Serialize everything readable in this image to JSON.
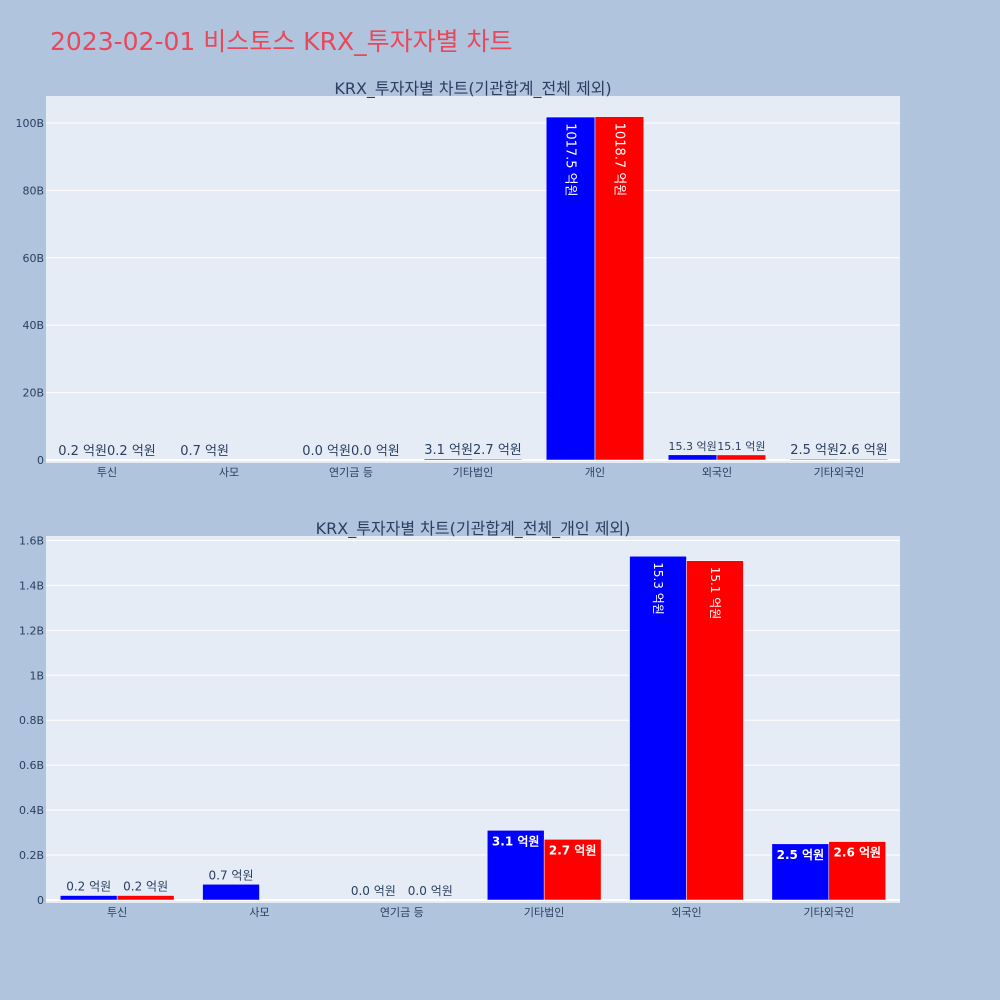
{
  "page_title": "2023-02-01 비스토스 KRX_투자자별 차트",
  "colors": {
    "background": "#b0c4de",
    "plot_bg": "#e5ecf6",
    "title": "#e8485a",
    "series_a": "#0000ff",
    "series_b": "#ff0000"
  },
  "chart_data": [
    {
      "type": "bar",
      "title": "KRX_투자자별 차트(기관합계_전체 제외)",
      "categories": [
        "투신",
        "사모",
        "연기금 등",
        "기타법인",
        "개인",
        "외국인",
        "기타외국인"
      ],
      "ylim": [
        0,
        108
      ],
      "yticks": [
        0,
        20,
        40,
        60,
        80,
        100
      ],
      "ytick_labels": [
        "0",
        "20B",
        "40B",
        "60B",
        "80B",
        "100B"
      ],
      "series": [
        {
          "color": "#0000ff",
          "values": [
            0.02,
            0.07,
            0.0,
            0.31,
            101.75,
            1.53,
            0.25
          ],
          "labels": [
            "0.2 억원",
            "0.7 억원",
            "0.0 억원",
            "3.1 억원",
            "1017.5 억원",
            "15.3 억원",
            "2.5 억원"
          ]
        },
        {
          "color": "#ff0000",
          "values": [
            0.02,
            0.0,
            0.0,
            0.27,
            101.87,
            1.51,
            0.26
          ],
          "labels": [
            "0.2 억원",
            "",
            "0.0 억원",
            "2.7 억원",
            "1018.7 억원",
            "15.1 억원",
            "2.6 억원"
          ]
        }
      ]
    },
    {
      "type": "bar",
      "title": "KRX_투자자별 차트(기관합계_전체_개인 제외)",
      "categories": [
        "투신",
        "사모",
        "연기금 등",
        "기타법인",
        "외국인",
        "기타외국인"
      ],
      "ylim": [
        0,
        1.62
      ],
      "yticks": [
        0,
        0.2,
        0.4,
        0.6,
        0.8,
        1.0,
        1.2,
        1.4,
        1.6
      ],
      "ytick_labels": [
        "0",
        "0.2B",
        "0.4B",
        "0.6B",
        "0.8B",
        "1B",
        "1.2B",
        "1.4B",
        "1.6B"
      ],
      "series": [
        {
          "color": "#0000ff",
          "values": [
            0.02,
            0.07,
            0.0,
            0.31,
            1.53,
            0.25
          ],
          "labels": [
            "0.2 억원",
            "0.7 억원",
            "0.0 억원",
            "3.1 억원",
            "15.3 억원",
            "2.5 억원"
          ]
        },
        {
          "color": "#ff0000",
          "values": [
            0.02,
            0.0,
            0.0,
            0.27,
            1.51,
            0.26
          ],
          "labels": [
            "0.2 억원",
            "",
            "0.0 억원",
            "2.7 억원",
            "15.1 억원",
            "2.6 억원"
          ]
        }
      ]
    }
  ]
}
